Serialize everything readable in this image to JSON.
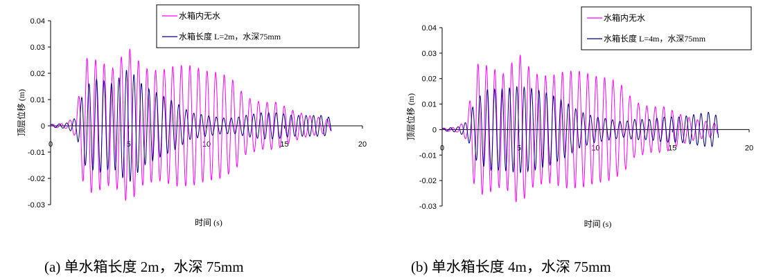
{
  "captions": {
    "a": "(a)  单水箱长度 2m，水深 75mm",
    "b": "(b)  单水箱长度 4m，水深 75mm"
  },
  "colors": {
    "no_water": "#ff00ff",
    "with_water": "#000080"
  },
  "chart_data": [
    {
      "type": "line",
      "xlabel": "时间 (s)",
      "ylabel": "顶层位移 (m)",
      "xlim": [
        0,
        20
      ],
      "ylim": [
        -0.03,
        0.04
      ],
      "x_ticks": [
        "0",
        "5",
        "10",
        "15",
        "20"
      ],
      "y_ticks": [
        "0.04",
        "0.03",
        "0.02",
        "0.01",
        "0",
        "-0.01",
        "-0.02",
        "-0.03"
      ],
      "legend_position": "top-right",
      "series": [
        {
          "name": "水箱内无水",
          "x": [
            0,
            1,
            1.6,
            2.2,
            3,
            4,
            5,
            6,
            7,
            8,
            9,
            10,
            11,
            11.8,
            12.5,
            13.5,
            14.5,
            15.5,
            16.5,
            17.5,
            18
          ],
          "amp": [
            0.0005,
            0.001,
            0.004,
            0.026,
            0.025,
            0.022,
            0.03,
            0.022,
            0.021,
            0.023,
            0.023,
            0.021,
            0.02,
            0.017,
            0.011,
            0.009,
            0.009,
            0.006,
            0.004,
            0.003,
            0.002
          ]
        },
        {
          "name": "水箱长度 L=2m，水深75mm",
          "x": [
            0,
            1,
            1.6,
            2.2,
            3,
            4,
            5,
            6,
            7,
            8,
            9,
            10,
            11,
            11.8,
            12.5,
            13.5,
            14.5,
            15.5,
            16.5,
            17.5,
            18
          ],
          "amp": [
            0.0005,
            0.001,
            0.003,
            0.015,
            0.018,
            0.016,
            0.022,
            0.015,
            0.012,
            0.009,
            0.005,
            0.004,
            0.003,
            0.003,
            0.004,
            0.005,
            0.005,
            0.004,
            0.004,
            0.004,
            0.003
          ]
        }
      ]
    },
    {
      "type": "line",
      "xlabel": "时间 (s)",
      "ylabel": "顶层位移 (m)",
      "xlim": [
        0,
        20
      ],
      "ylim": [
        -0.03,
        0.04
      ],
      "x_ticks": [
        "0",
        "5",
        "10",
        "15",
        "20"
      ],
      "y_ticks": [
        "0.04",
        "0.03",
        "0.02",
        "0.01",
        "0",
        "-0.01",
        "-0.02",
        "-0.03"
      ],
      "legend_position": "top-right",
      "series": [
        {
          "name": "水箱内无水",
          "x": [
            0,
            1,
            1.6,
            2.2,
            3,
            4,
            5,
            6,
            7,
            8,
            9,
            10,
            11,
            11.8,
            12.5,
            13.5,
            14.5,
            15.5,
            16.5,
            17.5,
            18
          ],
          "amp": [
            0.0005,
            0.001,
            0.004,
            0.026,
            0.025,
            0.022,
            0.03,
            0.022,
            0.021,
            0.023,
            0.023,
            0.021,
            0.02,
            0.017,
            0.011,
            0.009,
            0.009,
            0.006,
            0.004,
            0.003,
            0.002
          ]
        },
        {
          "name": "水箱长度 L=4m，水深75mm",
          "x": [
            0,
            1,
            1.6,
            2.2,
            3,
            4,
            5,
            6,
            7,
            8,
            9,
            10,
            11,
            11.8,
            12.5,
            13.5,
            14.5,
            15.5,
            16.5,
            17.5,
            18
          ],
          "amp": [
            0.0005,
            0.001,
            0.003,
            0.012,
            0.016,
            0.016,
            0.017,
            0.016,
            0.014,
            0.011,
            0.007,
            0.005,
            0.004,
            0.003,
            0.004,
            0.004,
            0.005,
            0.005,
            0.006,
            0.007,
            0.005
          ]
        }
      ]
    }
  ]
}
